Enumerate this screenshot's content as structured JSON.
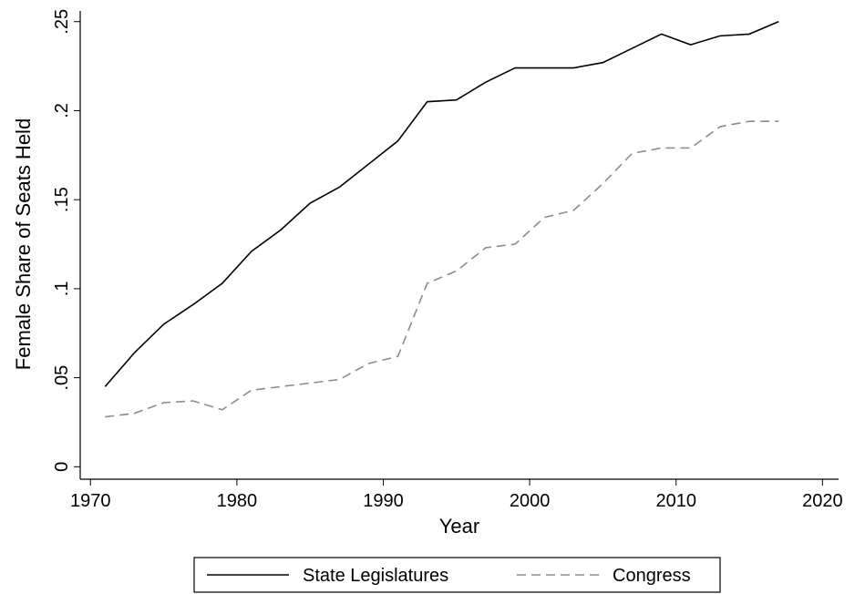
{
  "chart_data": {
    "type": "line",
    "xlabel": "Year",
    "ylabel": "Female Share of Seats Held",
    "x": [
      1971,
      1973,
      1975,
      1977,
      1979,
      1981,
      1983,
      1985,
      1987,
      1989,
      1991,
      1993,
      1995,
      1997,
      1999,
      2001,
      2003,
      2005,
      2007,
      2009,
      2011,
      2013,
      2015,
      2017
    ],
    "series": [
      {
        "name": "State Legislatures",
        "color": "#000000",
        "style": "solid",
        "values": [
          0.045,
          0.064,
          0.08,
          0.091,
          0.103,
          0.121,
          0.133,
          0.148,
          0.157,
          0.17,
          0.183,
          0.205,
          0.206,
          0.216,
          0.224,
          0.224,
          0.224,
          0.227,
          0.235,
          0.243,
          0.237,
          0.242,
          0.243,
          0.25
        ]
      },
      {
        "name": "Congress",
        "color": "#8c8c8c",
        "style": "dashed",
        "values": [
          0.028,
          0.03,
          0.036,
          0.037,
          0.032,
          0.043,
          0.045,
          0.047,
          0.049,
          0.058,
          0.062,
          0.103,
          0.11,
          0.123,
          0.125,
          0.14,
          0.144,
          0.159,
          0.176,
          0.179,
          0.179,
          0.191,
          0.194,
          0.194
        ]
      }
    ],
    "xlim": [
      1969.3,
      2021.1
    ],
    "xticks": [
      1970,
      1980,
      1990,
      2000,
      2010,
      2020
    ],
    "ylim": [
      -0.007,
      0.256
    ],
    "yticks": [
      0,
      {
        "value": 0.05,
        "label": ".05"
      },
      {
        "value": 0.1,
        "label": ".1"
      },
      {
        "value": 0.15,
        "label": ".15"
      },
      {
        "value": 0.2,
        "label": ".2"
      },
      {
        "value": 0.25,
        "label": ".25"
      }
    ],
    "grid": false,
    "legend": "bottom"
  }
}
